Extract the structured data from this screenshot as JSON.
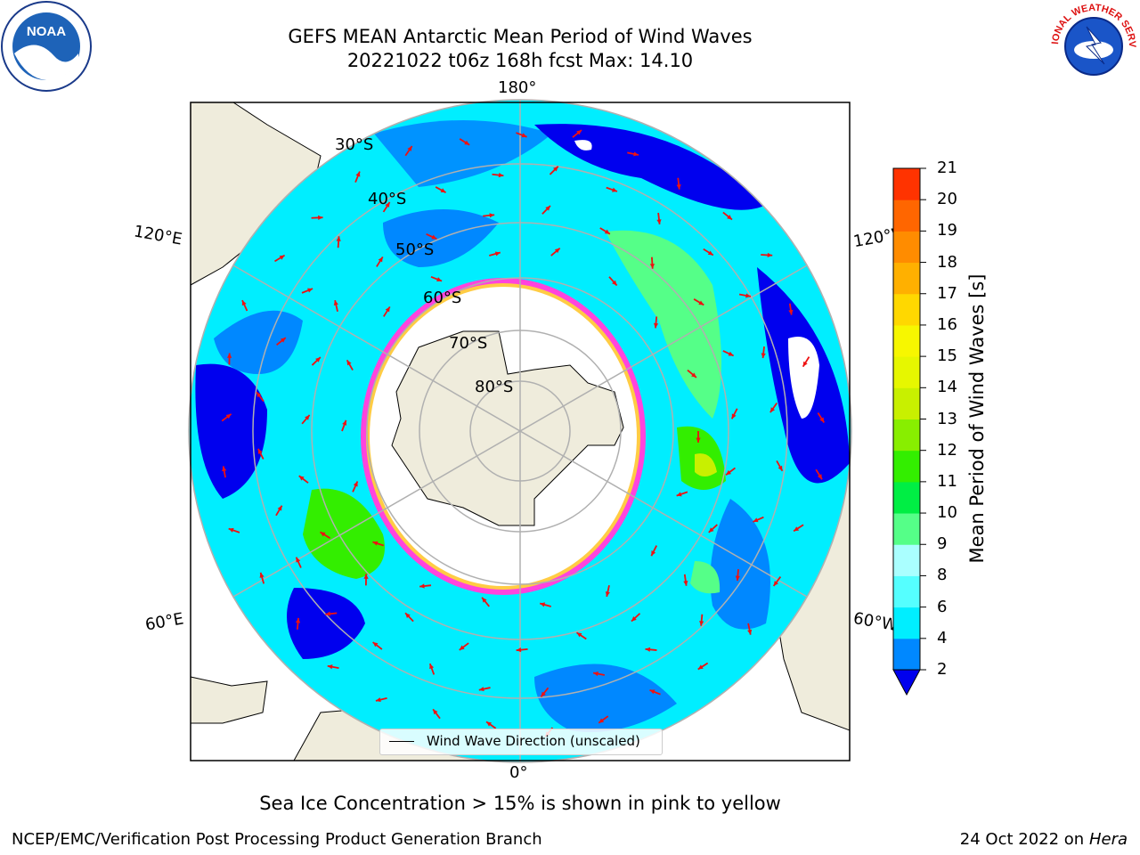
{
  "title": {
    "line1": "GEFS MEAN Antarctic Mean Period of Wind Waves",
    "line2": "20221022 t06z 168h fcst   Max: 14.10"
  },
  "logos": {
    "left": "noaa-logo",
    "right": "nws-logo",
    "left_text": "NOAA",
    "right_text": "NATIONAL WEATHER SERVICE"
  },
  "map": {
    "projection": "south-polar-stereographic",
    "longitude_labels": [
      "180°",
      "120°E",
      "120°W",
      "60°E",
      "60°W",
      "0°"
    ],
    "latitude_labels": [
      "30°S",
      "40°S",
      "50°S",
      "60°S",
      "70°S",
      "80°S"
    ],
    "colors": {
      "land": "#efecdc",
      "ice_mask": "#ffffff",
      "ice_edge_pink": "#ff44dd",
      "ice_edge_yellow": "#ffcc44",
      "arrow": "#ee1111",
      "grid": "#b0b0b0"
    }
  },
  "legend": {
    "label": "Wind Wave Direction (unscaled)"
  },
  "colorbar": {
    "label": "Mean Period of Wind Waves [s]",
    "ticks": [
      "21",
      "20",
      "19",
      "18",
      "17",
      "16",
      "15",
      "14",
      "13",
      "12",
      "11",
      "10",
      "9",
      "8",
      "6",
      "4",
      "2"
    ],
    "colors": [
      "#ff0000",
      "#ff3300",
      "#ff6600",
      "#ff8c00",
      "#ffb000",
      "#ffd800",
      "#f7f700",
      "#e6f700",
      "#c8f000",
      "#88ee00",
      "#33ee00",
      "#00ee44",
      "#55ff88",
      "#aaffff",
      "#55ffff",
      "#00eeff",
      "#0088ff",
      "#0000ee"
    ]
  },
  "subtitle": "Sea Ice Concentration > 15% is shown in pink to yellow",
  "footer": {
    "left": "NCEP/EMC/Verification Post Processing Product Generation Branch",
    "right_date": "24 Oct 2022 on ",
    "right_host": "Hera"
  }
}
